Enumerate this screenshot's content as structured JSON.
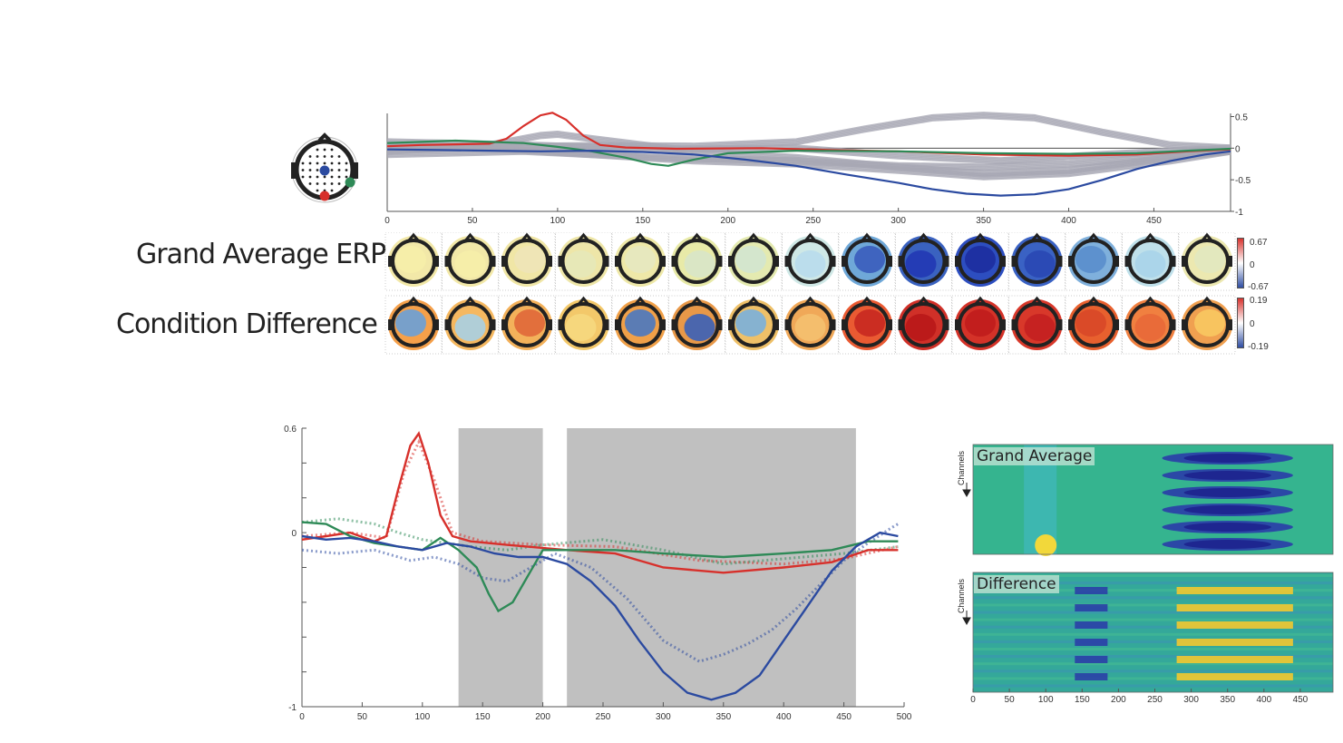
{
  "labels": {
    "grand_average_erp": "Grand Average ERP",
    "condition_difference": "Condition Difference",
    "heatmap_top": "Grand Average",
    "heatmap_bottom": "Difference",
    "channels": "Channels"
  },
  "colorbars": {
    "erp": {
      "max": "0.67",
      "mid": "0",
      "min": "-0.67"
    },
    "diff": {
      "max": "0.19",
      "mid": "0",
      "min": "-0.19"
    }
  },
  "colors": {
    "red": "#d7302b",
    "green": "#2e8a57",
    "blue": "#2b4aa0",
    "gray": "#a7a8b4",
    "shade": "#c0c0c0"
  },
  "chart_data": [
    {
      "type": "line",
      "name": "top_butterfly",
      "x_ticks": [
        0,
        50,
        100,
        150,
        200,
        250,
        300,
        350,
        400,
        450
      ],
      "y_ticks": [
        0.5,
        0,
        -0.5,
        -1
      ],
      "y_tick_labels": [
        "0.5",
        "0",
        "-0.5",
        "-1"
      ],
      "xlim": [
        0,
        495
      ],
      "ylim": [
        -1,
        0.55
      ],
      "series": [
        {
          "color": "red",
          "x": [
            0,
            20,
            40,
            60,
            70,
            80,
            90,
            97,
            105,
            115,
            125,
            140,
            170,
            220,
            260,
            300,
            350,
            400,
            440,
            470,
            495
          ],
          "y": [
            0.03,
            0.05,
            0.06,
            0.07,
            0.15,
            0.35,
            0.52,
            0.56,
            0.45,
            0.2,
            0.05,
            0.01,
            -0.01,
            0.0,
            -0.03,
            -0.05,
            -0.1,
            -0.12,
            -0.1,
            -0.05,
            -0.02
          ]
        },
        {
          "color": "green",
          "x": [
            0,
            20,
            40,
            60,
            80,
            100,
            120,
            140,
            155,
            165,
            180,
            200,
            240,
            300,
            350,
            400,
            440,
            470,
            495
          ],
          "y": [
            0.08,
            0.1,
            0.12,
            0.1,
            0.08,
            0.02,
            -0.05,
            -0.15,
            -0.25,
            -0.28,
            -0.18,
            -0.08,
            -0.04,
            -0.05,
            -0.08,
            -0.09,
            -0.08,
            -0.04,
            -0.01
          ]
        },
        {
          "color": "blue",
          "x": [
            0,
            30,
            60,
            90,
            120,
            150,
            180,
            210,
            240,
            270,
            300,
            320,
            340,
            360,
            380,
            400,
            420,
            440,
            460,
            480,
            495
          ],
          "y": [
            -0.02,
            -0.03,
            -0.04,
            -0.05,
            -0.04,
            -0.06,
            -0.1,
            -0.18,
            -0.28,
            -0.42,
            -0.55,
            -0.65,
            -0.72,
            -0.75,
            -0.73,
            -0.65,
            -0.5,
            -0.33,
            -0.2,
            -0.1,
            -0.05
          ]
        }
      ],
      "gray_series": [
        {
          "x": [
            0,
            60,
            120,
            180,
            240,
            280,
            320,
            350,
            380,
            420,
            460,
            495
          ],
          "y": [
            0.0,
            0.02,
            0.04,
            0.03,
            0.1,
            0.3,
            0.48,
            0.52,
            0.48,
            0.25,
            0.05,
            0.0
          ]
        },
        {
          "x": [
            0,
            60,
            90,
            100,
            120,
            180,
            240,
            300,
            350,
            400,
            460,
            495
          ],
          "y": [
            -0.05,
            0.05,
            0.2,
            0.22,
            0.15,
            -0.05,
            -0.15,
            -0.3,
            -0.4,
            -0.35,
            -0.15,
            -0.05
          ]
        },
        {
          "x": [
            0,
            60,
            120,
            180,
            240,
            300,
            350,
            400,
            460,
            495
          ],
          "y": [
            0.05,
            0.0,
            -0.1,
            -0.2,
            -0.25,
            -0.35,
            -0.45,
            -0.4,
            -0.2,
            -0.05
          ]
        },
        {
          "x": [
            0,
            80,
            160,
            240,
            300,
            350,
            400,
            460,
            495
          ],
          "y": [
            -0.1,
            -0.05,
            -0.15,
            -0.2,
            -0.28,
            -0.3,
            -0.25,
            -0.12,
            -0.05
          ]
        },
        {
          "x": [
            0,
            80,
            160,
            240,
            300,
            360,
            420,
            495
          ],
          "y": [
            0.1,
            0.05,
            -0.02,
            0.0,
            -0.12,
            -0.2,
            -0.1,
            0.0
          ]
        }
      ]
    },
    {
      "type": "line",
      "name": "bottom_conditions",
      "x_ticks": [
        0,
        50,
        100,
        150,
        200,
        250,
        300,
        350,
        400,
        450,
        500
      ],
      "y_tick_labels": [
        "0.6",
        "0",
        "-1"
      ],
      "y_ticks": [
        0.6,
        0,
        -1
      ],
      "xlim": [
        0,
        500
      ],
      "ylim": [
        -1,
        0.6
      ],
      "shaded_regions": [
        [
          130,
          200
        ],
        [
          220,
          460
        ]
      ],
      "series": [
        {
          "color": "red",
          "style": "solid",
          "x": [
            0,
            20,
            40,
            60,
            70,
            80,
            90,
            97,
            105,
            115,
            125,
            140,
            170,
            220,
            260,
            300,
            350,
            400,
            440,
            470,
            495
          ],
          "y": [
            -0.04,
            -0.02,
            0.0,
            -0.05,
            -0.02,
            0.25,
            0.5,
            0.57,
            0.4,
            0.1,
            -0.02,
            -0.05,
            -0.07,
            -0.1,
            -0.12,
            -0.2,
            -0.23,
            -0.2,
            -0.17,
            -0.1,
            -0.1
          ]
        },
        {
          "color": "red",
          "style": "dotted",
          "x": [
            0,
            40,
            70,
            85,
            97,
            110,
            125,
            150,
            200,
            260,
            330,
            400,
            450,
            495
          ],
          "y": [
            -0.02,
            0.0,
            -0.03,
            0.35,
            0.52,
            0.3,
            0.0,
            -0.05,
            -0.07,
            -0.08,
            -0.16,
            -0.18,
            -0.15,
            -0.08
          ]
        },
        {
          "color": "green",
          "style": "solid",
          "x": [
            0,
            20,
            40,
            60,
            80,
            100,
            115,
            130,
            145,
            155,
            163,
            175,
            190,
            200,
            230,
            260,
            300,
            350,
            400,
            440,
            470,
            495
          ],
          "y": [
            0.06,
            0.05,
            -0.02,
            -0.06,
            -0.08,
            -0.1,
            -0.03,
            -0.1,
            -0.2,
            -0.35,
            -0.45,
            -0.4,
            -0.22,
            -0.1,
            -0.1,
            -0.1,
            -0.12,
            -0.14,
            -0.12,
            -0.1,
            -0.05,
            -0.05
          ]
        },
        {
          "color": "green",
          "style": "dotted",
          "x": [
            0,
            30,
            60,
            80,
            100,
            120,
            140,
            170,
            200,
            250,
            300,
            350,
            400,
            450,
            495
          ],
          "y": [
            0.06,
            0.08,
            0.05,
            0.0,
            -0.04,
            -0.06,
            -0.08,
            -0.1,
            -0.07,
            -0.04,
            -0.1,
            -0.18,
            -0.15,
            -0.12,
            -0.08
          ]
        },
        {
          "color": "blue",
          "style": "solid",
          "x": [
            0,
            20,
            40,
            60,
            80,
            100,
            120,
            140,
            160,
            180,
            200,
            220,
            240,
            260,
            280,
            300,
            320,
            340,
            360,
            380,
            400,
            420,
            440,
            460,
            480,
            495
          ],
          "y": [
            -0.02,
            -0.04,
            -0.03,
            -0.05,
            -0.08,
            -0.1,
            -0.06,
            -0.08,
            -0.12,
            -0.14,
            -0.14,
            -0.18,
            -0.28,
            -0.42,
            -0.62,
            -0.8,
            -0.92,
            -0.96,
            -0.92,
            -0.82,
            -0.62,
            -0.42,
            -0.22,
            -0.08,
            0.0,
            -0.02
          ]
        },
        {
          "color": "blue",
          "style": "dotted",
          "x": [
            0,
            30,
            60,
            90,
            110,
            130,
            150,
            170,
            190,
            210,
            240,
            270,
            300,
            330,
            350,
            370,
            390,
            410,
            430,
            450,
            470,
            490,
            495
          ],
          "y": [
            -0.1,
            -0.12,
            -0.1,
            -0.16,
            -0.14,
            -0.18,
            -0.26,
            -0.28,
            -0.2,
            -0.12,
            -0.2,
            -0.38,
            -0.62,
            -0.74,
            -0.7,
            -0.64,
            -0.56,
            -0.44,
            -0.3,
            -0.16,
            -0.06,
            0.03,
            0.05
          ]
        }
      ]
    },
    {
      "type": "heatmap",
      "name": "grand_average_heatmap",
      "x_ticks": [
        0,
        50,
        100,
        150,
        200,
        250,
        300,
        350,
        400,
        450
      ],
      "xlim": [
        0,
        495
      ],
      "note_rows": "channels"
    },
    {
      "type": "heatmap",
      "name": "difference_heatmap",
      "x_ticks": [
        0,
        50,
        100,
        150,
        200,
        250,
        300,
        350,
        400,
        450
      ],
      "xlim": [
        0,
        495
      ]
    }
  ]
}
